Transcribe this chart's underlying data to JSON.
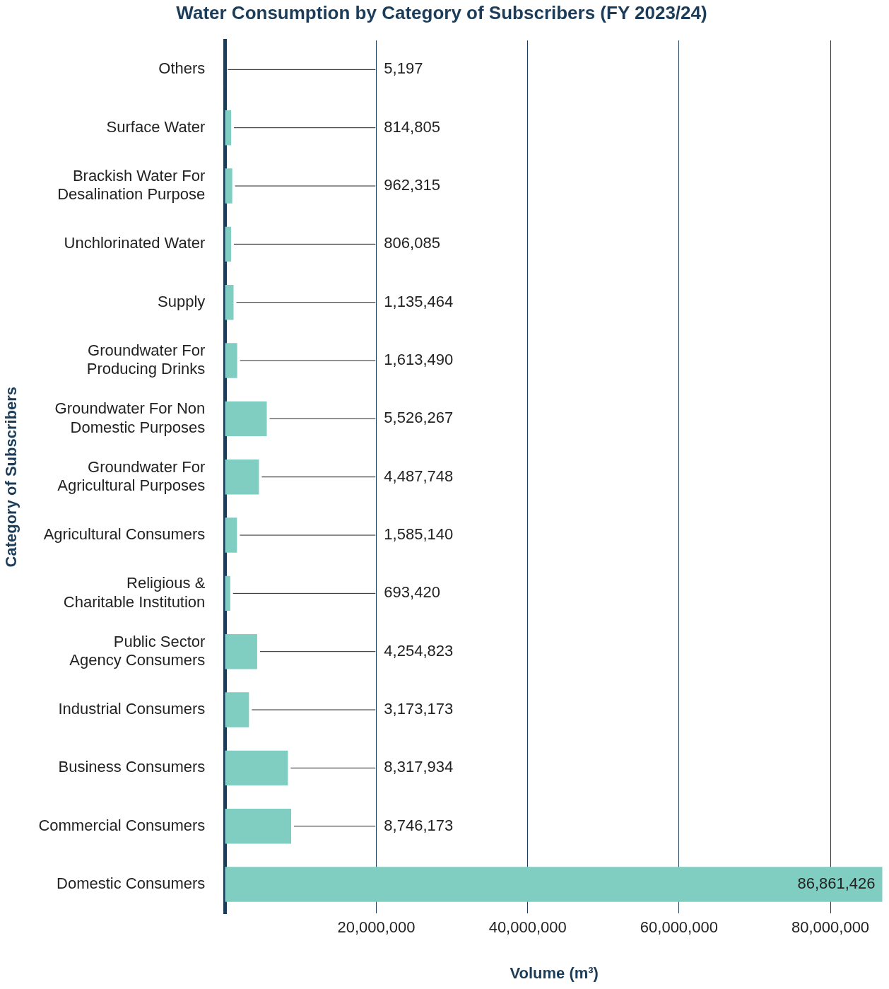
{
  "chart_data": {
    "type": "bar",
    "orientation": "horizontal",
    "title": "Water Consumption by Category of Subscribers (FY 2023/24)",
    "xlabel": "Volume (m³)",
    "ylabel": "Category of Subscribers",
    "categories": [
      "Others",
      "Surface Water",
      "Brackish Water For Desalination Purpose",
      "Unchlorinated Water",
      "Supply",
      "Groundwater For Producing Drinks",
      "Groundwater For Non Domestic Purposes",
      "Groundwater For Agricultural Purposes",
      "Agricultural Consumers",
      "Religious & Charitable Institution",
      "Public Sector Agency Consumers",
      "Industrial Consumers",
      "Business Consumers",
      "Commercial Consumers",
      "Domestic Consumers"
    ],
    "values": [
      5197,
      814805,
      962315,
      806085,
      1135464,
      1613490,
      5526267,
      4487748,
      1585140,
      693420,
      4254823,
      3173173,
      8317934,
      8746173,
      86861426
    ],
    "value_labels": [
      "5,197",
      "814,805",
      "962,315",
      "806,085",
      "1,135,464",
      "1,613,490",
      "5,526,267",
      "4,487,748",
      "1,585,140",
      "693,420",
      "4,254,823",
      "3,173,173",
      "8,317,934",
      "8,746,173",
      "86,861,426"
    ],
    "color": "#80cdc1",
    "xlim": [
      0,
      87000000
    ],
    "xticks": [
      {
        "value": 20000000,
        "label": "20,000,000"
      },
      {
        "value": 40000000,
        "label": "40,000,000"
      },
      {
        "value": 60000000,
        "label": "60,000,000"
      },
      {
        "value": 80000000,
        "label": "80,000,000"
      }
    ],
    "grid": "x",
    "legend": false
  }
}
